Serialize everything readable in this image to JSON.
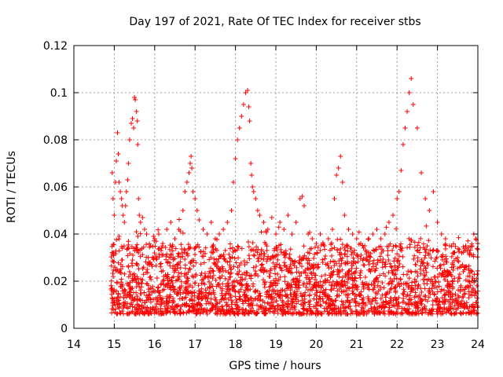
{
  "chart_data": {
    "type": "scatter",
    "title": "Day 197 of 2021, Rate Of TEC Index for receiver stbs",
    "xlabel": "GPS time / hours",
    "ylabel": "ROTI / TECUs",
    "xlim": [
      14,
      24
    ],
    "ylim": [
      0,
      0.12
    ],
    "xticks": [
      "14",
      "15",
      "16",
      "17",
      "18",
      "19",
      "20",
      "21",
      "22",
      "23",
      "24"
    ],
    "yticks": [
      "0",
      "0.02",
      "0.04",
      "0.06",
      "0.08",
      "0.1",
      "0.12"
    ],
    "grid": true,
    "marker": "+",
    "series_color": "#ff0000",
    "series": [
      {
        "name": "ROTI",
        "x": [
          14.95,
          14.97,
          15.0,
          15.03,
          15.05,
          15.08,
          15.1,
          15.12,
          15.15,
          15.18,
          15.2,
          15.22,
          15.25,
          15.28,
          15.3,
          15.33,
          15.35,
          15.38,
          15.42,
          15.45,
          15.48,
          15.5,
          15.52,
          15.55,
          15.57,
          15.58,
          15.6,
          15.62,
          15.65,
          15.7,
          15.75,
          15.8,
          15.9,
          16.0,
          16.1,
          16.2,
          16.3,
          16.4,
          16.5,
          16.6,
          16.7,
          16.75,
          16.8,
          16.85,
          16.88,
          16.9,
          16.92,
          16.95,
          17.0,
          17.05,
          17.1,
          17.2,
          17.3,
          17.4,
          17.5,
          17.6,
          17.7,
          17.8,
          17.9,
          17.95,
          18.0,
          18.05,
          18.1,
          18.15,
          18.2,
          18.25,
          18.3,
          18.33,
          18.35,
          18.38,
          18.4,
          18.42,
          18.45,
          18.5,
          18.55,
          18.6,
          18.7,
          18.8,
          18.9,
          19.0,
          19.1,
          19.2,
          19.3,
          19.4,
          19.5,
          19.6,
          19.65,
          19.7,
          19.8,
          19.9,
          20.0,
          20.1,
          20.2,
          20.3,
          20.4,
          20.45,
          20.5,
          20.55,
          20.6,
          20.65,
          20.7,
          20.8,
          20.9,
          21.0,
          21.1,
          21.2,
          21.3,
          21.4,
          21.5,
          21.6,
          21.7,
          21.8,
          21.9,
          22.0,
          22.05,
          22.1,
          22.15,
          22.2,
          22.25,
          22.3,
          22.35,
          22.4,
          22.5,
          22.6,
          22.7,
          22.8,
          22.9,
          23.0,
          23.1,
          23.2,
          23.3,
          23.4,
          23.5,
          23.6,
          23.7,
          23.8,
          23.85,
          23.9,
          23.95,
          24.0
        ],
        "y": [
          0.066,
          0.055,
          0.048,
          0.062,
          0.071,
          0.083,
          0.074,
          0.062,
          0.058,
          0.055,
          0.052,
          0.048,
          0.045,
          0.052,
          0.058,
          0.063,
          0.07,
          0.08,
          0.087,
          0.089,
          0.085,
          0.098,
          0.097,
          0.092,
          0.088,
          0.078,
          0.055,
          0.048,
          0.045,
          0.047,
          0.042,
          0.04,
          0.035,
          0.038,
          0.04,
          0.036,
          0.042,
          0.045,
          0.038,
          0.042,
          0.05,
          0.058,
          0.062,
          0.066,
          0.07,
          0.073,
          0.068,
          0.058,
          0.055,
          0.05,
          0.046,
          0.042,
          0.04,
          0.045,
          0.038,
          0.04,
          0.042,
          0.045,
          0.05,
          0.062,
          0.072,
          0.08,
          0.085,
          0.09,
          0.095,
          0.1,
          0.101,
          0.094,
          0.088,
          0.07,
          0.065,
          0.06,
          0.058,
          0.055,
          0.05,
          0.048,
          0.045,
          0.042,
          0.047,
          0.04,
          0.045,
          0.042,
          0.048,
          0.04,
          0.045,
          0.055,
          0.056,
          0.052,
          0.04,
          0.038,
          0.036,
          0.04,
          0.035,
          0.038,
          0.042,
          0.055,
          0.065,
          0.068,
          0.073,
          0.062,
          0.048,
          0.042,
          0.04,
          0.038,
          0.036,
          0.035,
          0.038,
          0.04,
          0.042,
          0.038,
          0.04,
          0.045,
          0.048,
          0.055,
          0.058,
          0.067,
          0.078,
          0.085,
          0.092,
          0.1,
          0.106,
          0.095,
          0.085,
          0.066,
          0.055,
          0.05,
          0.058,
          0.045,
          0.04,
          0.038,
          0.035,
          0.032,
          0.03,
          0.032,
          0.035,
          0.032,
          0.035,
          0.04,
          0.038,
          0.036
        ]
      }
    ]
  }
}
